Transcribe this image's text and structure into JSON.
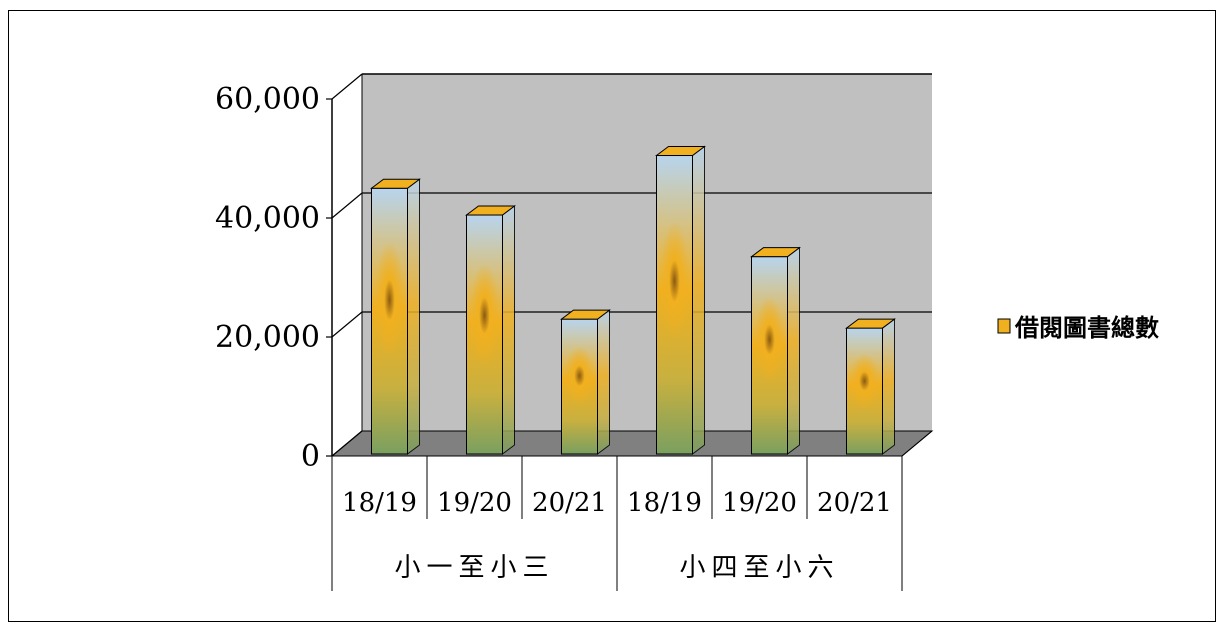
{
  "chart_data": {
    "type": "bar",
    "style": "3d-column-picture-fill",
    "title": "",
    "xlabel": "",
    "ylabel": "",
    "ylim": [
      0,
      60000
    ],
    "y_ticks": [
      "0",
      "20,000",
      "40,000",
      "60,000"
    ],
    "y_tick_values": [
      0,
      20000,
      40000,
      60000
    ],
    "groups": [
      {
        "label": "小一至小三",
        "categories": [
          "18/19",
          "19/20",
          "20/21"
        ]
      },
      {
        "label": "小四至小六",
        "categories": [
          "18/19",
          "19/20",
          "20/21"
        ]
      }
    ],
    "categories": [
      "18/19",
      "19/20",
      "20/21",
      "18/19",
      "19/20",
      "20/21"
    ],
    "series": [
      {
        "name": "借閱圖書總數",
        "values": [
          45000,
          40500,
          23000,
          50500,
          33500,
          21500
        ]
      }
    ],
    "grid": true,
    "legend_position": "right",
    "colors": {
      "wall": "#c0c0c0",
      "floor": "#808080",
      "sky": "#b8d4ee",
      "leaf": "#7aa060",
      "petal": "#f0b020",
      "seed": "#8a5a10"
    }
  }
}
